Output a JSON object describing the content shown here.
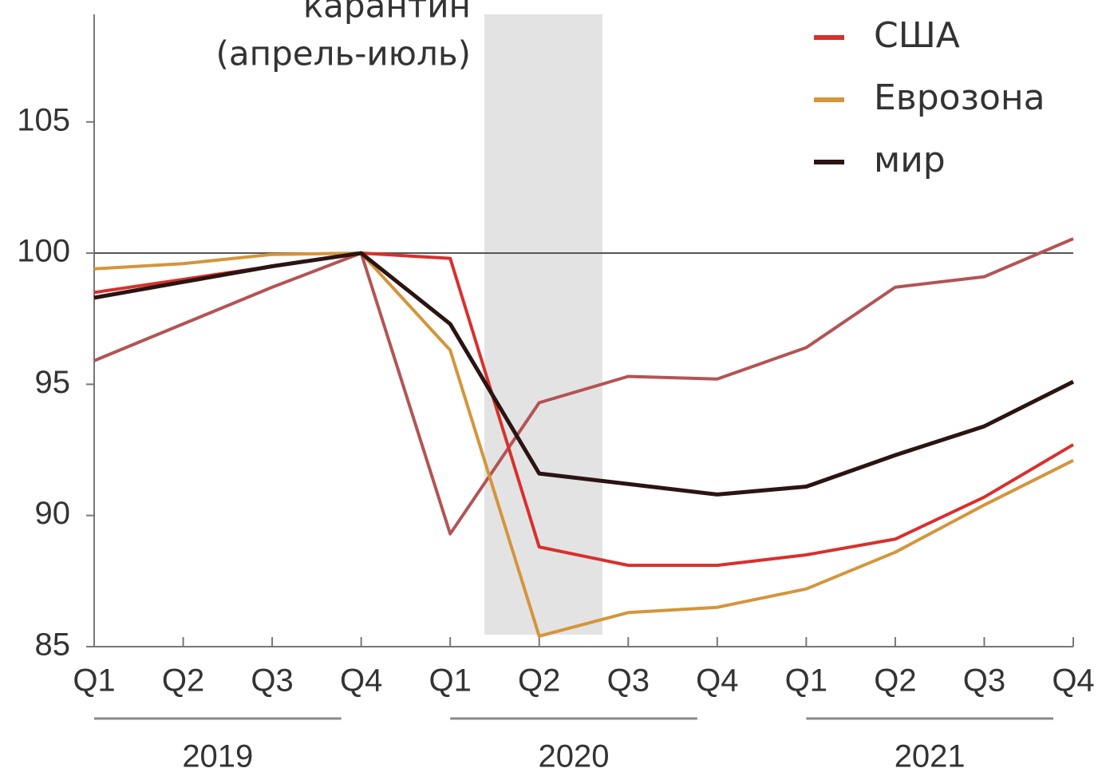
{
  "chart_data": {
    "type": "line",
    "annotation": [
      "карантин",
      "(апрель-июль)"
    ],
    "categories": [
      "Q1",
      "Q2",
      "Q3",
      "Q4",
      "Q1",
      "Q2",
      "Q3",
      "Q4",
      "Q1",
      "Q2",
      "Q3",
      "Q4"
    ],
    "years": [
      "2019",
      "2020",
      "2021"
    ],
    "series": [
      {
        "color": "#b35454",
        "values": [
          95.9,
          97.3,
          98.7,
          100,
          89.3,
          94.3,
          95.3,
          95.2,
          96.4,
          98.7,
          99.1,
          100.55
        ]
      },
      {
        "name": "США",
        "color": "#d8302d",
        "values": [
          98.5,
          99.0,
          99.5,
          100,
          99.8,
          88.8,
          88.1,
          88.1,
          88.5,
          89.1,
          90.7,
          92.7
        ]
      },
      {
        "name": "Еврозона",
        "color": "#d4953b",
        "values": [
          99.4,
          99.6,
          99.95,
          100,
          96.3,
          85.4,
          86.3,
          86.5,
          87.2,
          88.6,
          90.4,
          92.1
        ]
      },
      {
        "name": "мир",
        "color": "#2b1412",
        "values": [
          98.3,
          98.9,
          99.5,
          100,
          97.3,
          91.6,
          91.2,
          90.8,
          91.1,
          92.3,
          93.4,
          95.1
        ]
      }
    ],
    "ylim": [
      85,
      109.1
    ],
    "yticks": [
      85,
      90,
      95,
      100,
      105
    ],
    "reference_line": 100,
    "legend": "upper right"
  }
}
